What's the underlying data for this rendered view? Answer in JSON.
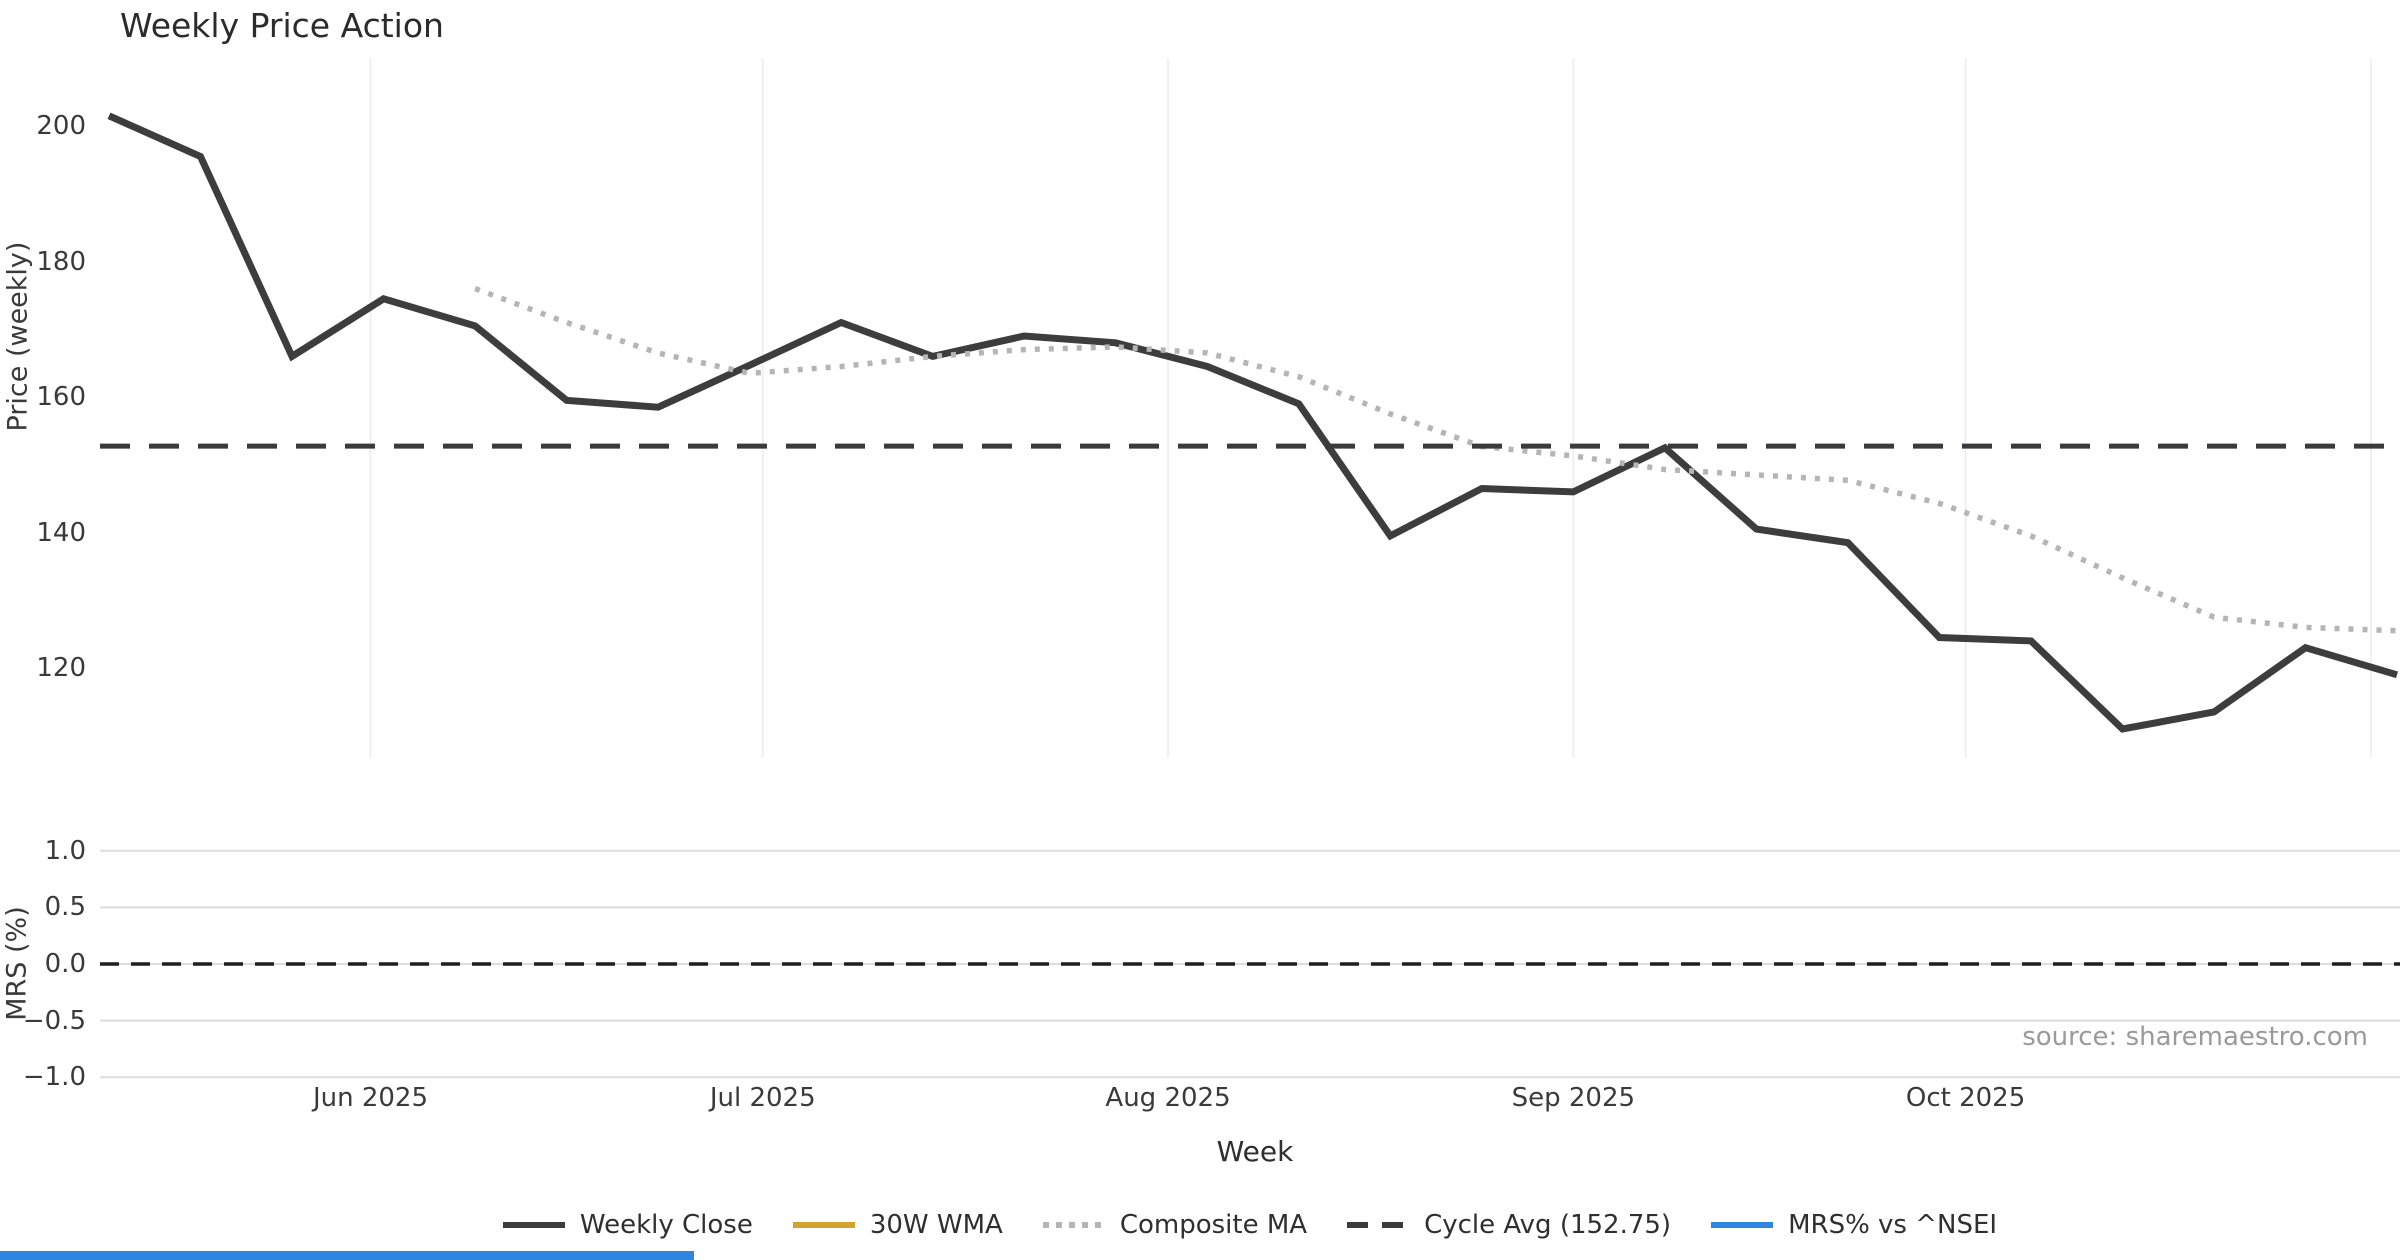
{
  "chart_data": {
    "type": "line",
    "title": "Weekly Price Action",
    "xlabel": "Week",
    "source_note": "source: sharemaestro.com",
    "n_weeks": 26,
    "grid": {
      "vertical_price_panel": true,
      "horizontal_mrs_panel": true,
      "vertical_color": "#edf0f4",
      "horizontal_color": "#dcdcdc"
    },
    "panels": [
      {
        "id": "price",
        "ylabel": "Price (weekly)",
        "ylim": [
          106.7,
          210
        ],
        "yticks": [
          {
            "v": 200,
            "label": "200"
          },
          {
            "v": 180,
            "label": "180"
          },
          {
            "v": 160,
            "label": "160"
          },
          {
            "v": 140,
            "label": "140"
          },
          {
            "v": 120,
            "label": "120"
          }
        ]
      },
      {
        "id": "mrs",
        "ylabel": "MRS (%)",
        "ylim": [
          -1.05,
          1.05
        ],
        "yticks": [
          {
            "v": 1.0,
            "label": "1.0"
          },
          {
            "v": 0.5,
            "label": "0.5"
          },
          {
            "v": 0.0,
            "label": "0.0"
          },
          {
            "v": -0.5,
            "label": "−0.5"
          },
          {
            "v": -1.0,
            "label": "−1.0"
          }
        ]
      }
    ],
    "x_ticks": [
      {
        "label": "Jun 2025",
        "day": 20
      },
      {
        "label": "Jul 2025",
        "day": 50
      },
      {
        "label": "Aug 2025",
        "day": 81
      },
      {
        "label": "Sep 2025",
        "day": 112
      },
      {
        "label": "Oct 2025",
        "day": 142
      },
      {
        "label": "",
        "day": 173
      }
    ],
    "series": [
      {
        "name": "Weekly Close",
        "panel": "price",
        "color": "#3d3d3d",
        "style": "solid",
        "width": 7,
        "values": [
          201.5,
          195.5,
          166,
          174.5,
          170.5,
          159.5,
          158.5,
          164.7,
          171,
          166,
          169,
          168,
          164.5,
          159,
          139.5,
          146.5,
          146,
          152.5,
          140.5,
          138.5,
          124.5,
          124,
          111,
          113.5,
          123,
          119
        ]
      },
      {
        "name": "30W WMA",
        "panel": "price",
        "color": "#d6a22e",
        "style": "solid",
        "width": 7,
        "values": []
      },
      {
        "name": "Composite MA",
        "panel": "price",
        "color": "#b5b5b5",
        "style": "dotted",
        "width": 5.5,
        "values": [
          null,
          null,
          null,
          null,
          176,
          171,
          166.5,
          163.5,
          164.5,
          166,
          167,
          167.4,
          166.5,
          163,
          157.5,
          152.7,
          151.3,
          149.3,
          148.5,
          147.7,
          144.3,
          139.5,
          133.3,
          127.5,
          126,
          125.5
        ]
      },
      {
        "name": "Cycle Avg (152.75)",
        "panel": "price",
        "color": "#3a3a3a",
        "style": "dashed",
        "width": 5,
        "constant": 152.75,
        "values": []
      },
      {
        "name": "MRS% vs ^NSEI",
        "panel": "mrs",
        "color": "#2e86e0",
        "style": "solid",
        "width": 7,
        "values": []
      }
    ],
    "mrs_zero_line": {
      "value": 0,
      "style": "dashed",
      "color": "#1f1f1f",
      "width": 3.5
    },
    "accent_bar_color": "#2e86e0"
  }
}
